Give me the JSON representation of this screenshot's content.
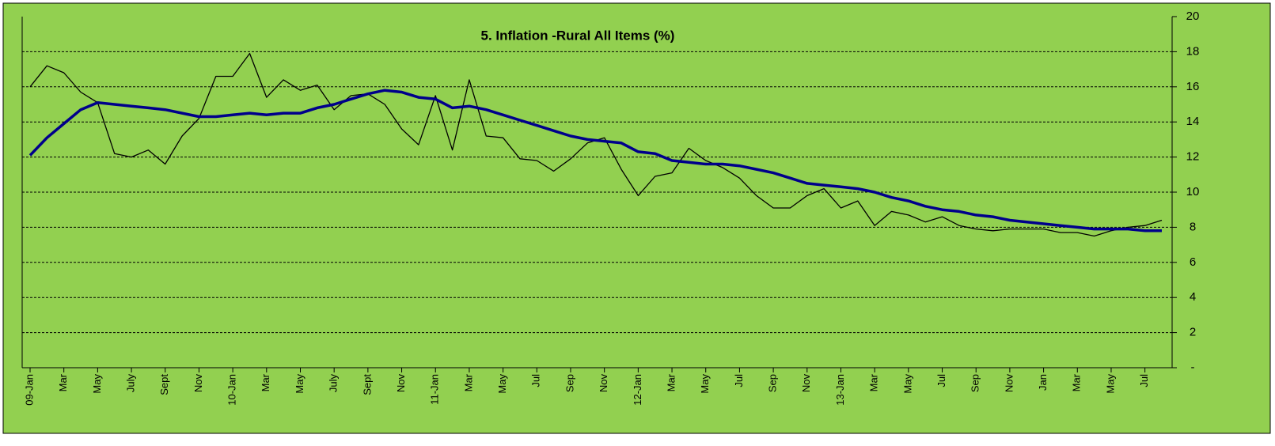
{
  "chart_data": {
    "type": "line",
    "title": "5. Inflation -Rural All Items (%)",
    "categories": [
      "09-Jan",
      null,
      "Mar",
      null,
      "May",
      null,
      "July",
      null,
      "Sept",
      null,
      "Nov",
      null,
      "10-Jan",
      null,
      "Mar",
      null,
      "May",
      null,
      "July",
      null,
      "Sept",
      null,
      "Nov",
      null,
      "11-Jan",
      null,
      "Mar",
      null,
      "May",
      null,
      "Jul",
      null,
      "Sep",
      null,
      "Nov",
      null,
      "12-Jan",
      null,
      "Mar",
      null,
      "May",
      null,
      "Jul",
      null,
      "Sep",
      null,
      "Nov",
      null,
      "13-Jan",
      null,
      "Mar",
      null,
      "May",
      null,
      "Jul",
      null,
      "Sep",
      null,
      "Nov",
      null,
      "Jan",
      null,
      "Mar",
      null,
      "May",
      null,
      "Jul",
      null
    ],
    "series": [
      {
        "color": "#000000",
        "values": [
          16.0,
          17.2,
          16.8,
          15.7,
          15.1,
          12.2,
          12.0,
          12.4,
          11.6,
          13.2,
          14.2,
          16.6,
          16.6,
          17.9,
          15.4,
          16.4,
          15.8,
          16.1,
          14.7,
          15.5,
          15.6,
          15.0,
          13.6,
          12.7,
          15.5,
          12.4,
          16.4,
          13.2,
          13.1,
          11.9,
          11.8,
          11.2,
          11.9,
          12.8,
          13.1,
          11.3,
          9.8,
          10.9,
          11.1,
          12.5,
          11.8,
          11.4,
          10.8,
          9.8,
          9.1,
          9.1,
          9.8,
          10.2,
          9.1,
          9.5,
          8.1,
          8.9,
          8.7,
          8.3,
          8.6,
          8.1,
          7.9,
          7.8,
          7.9,
          7.9,
          7.9,
          7.7,
          7.7,
          7.5,
          7.8,
          8.0,
          8.1,
          8.4
        ]
      },
      {
        "color": "#00008b",
        "values": [
          12.1,
          13.1,
          13.9,
          14.7,
          15.1,
          15.0,
          14.9,
          14.8,
          14.7,
          14.5,
          14.3,
          14.3,
          14.4,
          14.5,
          14.4,
          14.5,
          14.5,
          14.8,
          15.0,
          15.3,
          15.6,
          15.8,
          15.7,
          15.4,
          15.3,
          14.8,
          14.9,
          14.7,
          14.4,
          14.1,
          13.8,
          13.5,
          13.2,
          13.0,
          12.9,
          12.8,
          12.3,
          12.2,
          11.8,
          11.7,
          11.6,
          11.6,
          11.5,
          11.3,
          11.1,
          10.8,
          10.5,
          10.4,
          10.3,
          10.2,
          10.0,
          9.7,
          9.5,
          9.2,
          9.0,
          8.9,
          8.7,
          8.6,
          8.4,
          8.3,
          8.2,
          8.1,
          8.0,
          7.9,
          7.9,
          7.9,
          7.8,
          7.8
        ]
      }
    ],
    "ylim": [
      0,
      20
    ],
    "yticks": [
      {
        "value": 0,
        "label": "-"
      },
      2,
      4,
      6,
      8,
      10,
      12,
      14,
      16,
      18,
      20
    ],
    "grid": true,
    "background": "#92d050"
  }
}
